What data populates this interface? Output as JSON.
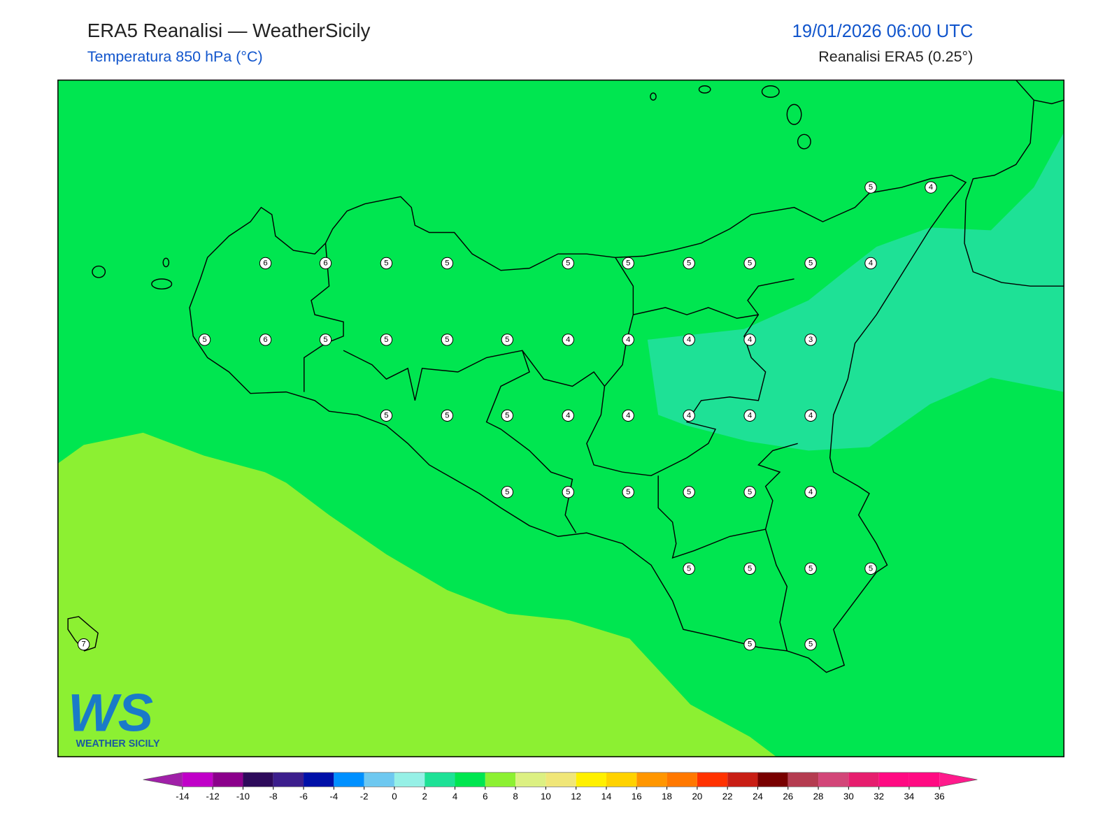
{
  "header": {
    "title": "ERA5 Reanalisi — WeatherSicily",
    "subtitle": "Temperatura 850 hPa (°C)",
    "datetime": "19/01/2026 06:00 UTC",
    "source": "Reanalisi ERA5 (0.25°)"
  },
  "stations": {
    "values": [
      5,
      4,
      6,
      6,
      5,
      5,
      5,
      5,
      5,
      5,
      5,
      4,
      5,
      6,
      5,
      5,
      5,
      5,
      4,
      4,
      4,
      4,
      3,
      5,
      5,
      5,
      4,
      4,
      4,
      4,
      4,
      5,
      5,
      5,
      5,
      5,
      4,
      5,
      5,
      5,
      5,
      7,
      5,
      5
    ]
  },
  "colorbar": {
    "ticks": [
      -14,
      -12,
      -10,
      -8,
      -6,
      -4,
      -2,
      0,
      2,
      4,
      6,
      8,
      10,
      12,
      14,
      16,
      18,
      20,
      22,
      24,
      26,
      28,
      30,
      32,
      34,
      36
    ],
    "colors": [
      "#c000c8",
      "#8b008b",
      "#2d0a5a",
      "#3c1e8c",
      "#0010a8",
      "#0090ff",
      "#6ec8f0",
      "#96f0e6",
      "#1ee196",
      "#00e650",
      "#8cf032",
      "#dcf082",
      "#f0e678",
      "#fff000",
      "#ffd200",
      "#ff9600",
      "#ff7800",
      "#ff3200",
      "#c81e14",
      "#780000",
      "#b43c50",
      "#d24678",
      "#e61e6e",
      "#ff0a82",
      "#ff0a82"
    ],
    "extend_colors": [
      "#a020a8",
      "#ff1a8c"
    ]
  },
  "logo": {
    "mark": "WS",
    "text": "WEATHER SICILY"
  }
}
